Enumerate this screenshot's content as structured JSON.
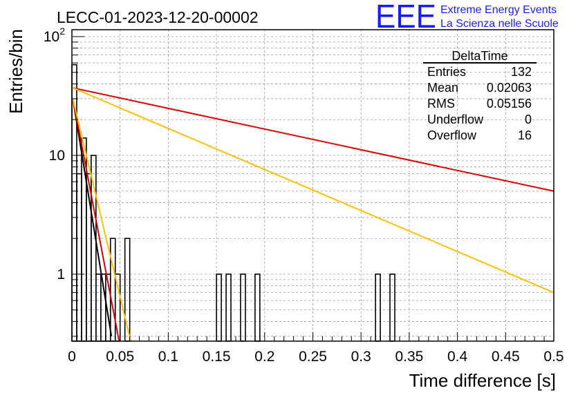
{
  "chart_data": {
    "type": "histogram",
    "title": "LECC-01-2023-12-20-00002",
    "xlabel": "Time difference [s]",
    "ylabel": "Entries/bin",
    "xlim": [
      0,
      0.5
    ],
    "ylim": [
      0.27,
      110
    ],
    "y_scale": "log",
    "grid": true,
    "x_ticks": [
      0,
      0.05,
      0.1,
      0.15,
      0.2,
      0.25,
      0.3,
      0.35,
      0.4,
      0.45,
      0.5
    ],
    "x_tick_labels": [
      "0",
      "0.05",
      "0.1",
      "0.15",
      "0.2",
      "0.25",
      "0.3",
      "0.35",
      "0.4",
      "0.45",
      "0.5"
    ],
    "y_tick_labels": [
      {
        "value": 1,
        "base": "1",
        "exp": ""
      },
      {
        "value": 10,
        "base": "10",
        "exp": ""
      },
      {
        "value": 100,
        "base": "10",
        "exp": "2"
      }
    ],
    "bin_width": 0.005,
    "bins": [
      {
        "x": 0.0,
        "count": 58
      },
      {
        "x": 0.005,
        "count": 7
      },
      {
        "x": 0.01,
        "count": 14
      },
      {
        "x": 0.015,
        "count": 7
      },
      {
        "x": 0.02,
        "count": 10
      },
      {
        "x": 0.025,
        "count": 1
      },
      {
        "x": 0.03,
        "count": 1
      },
      {
        "x": 0.035,
        "count": 1
      },
      {
        "x": 0.04,
        "count": 2
      },
      {
        "x": 0.045,
        "count": 1
      },
      {
        "x": 0.05,
        "count": 0
      },
      {
        "x": 0.055,
        "count": 2
      },
      {
        "x": 0.15,
        "count": 1
      },
      {
        "x": 0.16,
        "count": 1
      },
      {
        "x": 0.175,
        "count": 1
      },
      {
        "x": 0.19,
        "count": 1
      },
      {
        "x": 0.315,
        "count": 1
      },
      {
        "x": 0.33,
        "count": 1
      }
    ],
    "fit_lines": [
      {
        "color": "#000000",
        "points": [
          [
            0.001,
            30
          ],
          [
            0.041,
            0.3
          ]
        ]
      },
      {
        "color": "#dd0000",
        "points": [
          [
            0.001,
            30
          ],
          [
            0.049,
            0.27
          ]
        ]
      },
      {
        "color": "#ffc000",
        "points": [
          [
            0.001,
            30
          ],
          [
            0.061,
            0.27
          ]
        ]
      },
      {
        "color": "#dd0000",
        "points": [
          [
            0.001,
            37
          ],
          [
            0.5,
            5.0
          ]
        ]
      },
      {
        "color": "#ffc000",
        "points": [
          [
            0.001,
            37
          ],
          [
            0.5,
            0.7
          ]
        ]
      }
    ],
    "stats_box": {
      "title": "DeltaTime",
      "rows": [
        {
          "label": "Entries",
          "value": "132"
        },
        {
          "label": "Mean",
          "value": "0.02063"
        },
        {
          "label": "RMS",
          "value": "0.05156"
        },
        {
          "label": "Underflow",
          "value": "0"
        },
        {
          "label": "Overflow",
          "value": "16"
        }
      ]
    }
  },
  "logo": {
    "text": "EEE",
    "line1": "Extreme Energy Events",
    "line2": "La Scienza nelle Scuole",
    "color": "#1a1aff"
  }
}
